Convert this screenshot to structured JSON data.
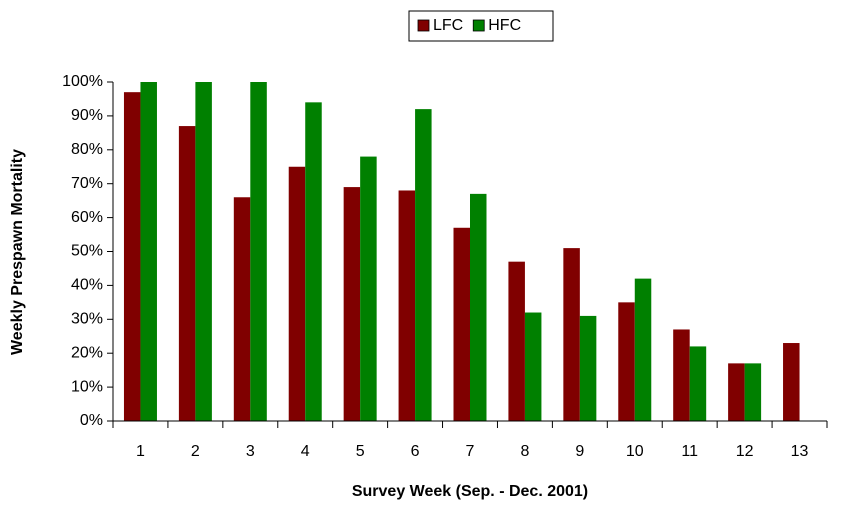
{
  "chart_data": {
    "type": "bar",
    "x_label": "Survey Week (Sep. - Dec. 2001)",
    "y_label": "Weekly Prespawn Mortality",
    "categories": [
      "1",
      "2",
      "3",
      "4",
      "5",
      "6",
      "7",
      "8",
      "9",
      "10",
      "11",
      "12",
      "13"
    ],
    "series": [
      {
        "name": "LFC",
        "color": "#800000",
        "values": [
          97,
          87,
          66,
          75,
          69,
          68,
          57,
          47,
          51,
          35,
          27,
          17,
          23
        ]
      },
      {
        "name": "HFC",
        "color": "#008000",
        "values": [
          100,
          100,
          100,
          94,
          78,
          92,
          67,
          32,
          31,
          42,
          22,
          17,
          null
        ]
      }
    ],
    "ylim": [
      0,
      100
    ],
    "yticks": [
      {
        "value": 0,
        "label": "0%"
      },
      {
        "value": 10,
        "label": "10%"
      },
      {
        "value": 20,
        "label": "20%"
      },
      {
        "value": 30,
        "label": "30%"
      },
      {
        "value": 40,
        "label": "40%"
      },
      {
        "value": 50,
        "label": "50%"
      },
      {
        "value": 60,
        "label": "60%"
      },
      {
        "value": 70,
        "label": "70%"
      },
      {
        "value": 80,
        "label": "80%"
      },
      {
        "value": 90,
        "label": "90%"
      },
      {
        "value": 100,
        "label": "100%"
      }
    ],
    "legend": "top"
  }
}
